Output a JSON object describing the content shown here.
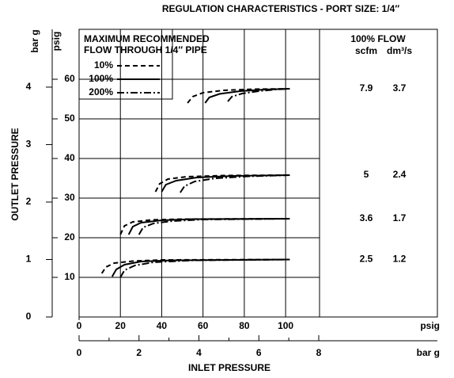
{
  "chart_data": {
    "type": "line",
    "title": "REGULATION CHARACTERISTICS - PORT SIZE: 1/4″",
    "legend_title": [
      "MAXIMUM RECOMMENDED",
      "FLOW THROUGH 1/4″ PIPE"
    ],
    "xlabel": "INLET PRESSURE",
    "ylabel": "OUTLET PRESSURE",
    "xunit": "psig",
    "x2unit": "bar g",
    "yunit": "psig",
    "y2unit": "bar g",
    "xlim": [
      0,
      173.5
    ],
    "xticks": [
      0,
      20,
      40,
      60,
      80,
      100
    ],
    "x2lim": [
      0,
      11.96
    ],
    "x2ticks": [
      0,
      2,
      4,
      6,
      8
    ],
    "x2minor": [
      1,
      3,
      5,
      7
    ],
    "ylim": [
      0,
      72.6
    ],
    "yticks": [
      10,
      20,
      30,
      40,
      50,
      60
    ],
    "y2lim": [
      0,
      5.006
    ],
    "y2ticks": [
      0,
      1,
      2,
      3,
      4
    ],
    "grid": true,
    "series": [
      {
        "name": "10%",
        "color": "#000000",
        "dash": "6,4",
        "x": [
          11,
          13,
          17,
          26,
          40,
          102,
          null,
          20,
          22,
          26,
          35,
          50,
          102,
          null,
          37,
          39,
          43,
          52,
          70,
          102,
          null,
          52.5,
          55,
          60,
          70,
          85,
          102
        ],
        "values": [
          11,
          12.6,
          13.6,
          14.1,
          14.4,
          14.5,
          null,
          20.8,
          23,
          24,
          24.5,
          24.7,
          24.8,
          null,
          31.6,
          33.6,
          34.8,
          35.4,
          35.7,
          35.8,
          null,
          54,
          55.6,
          56.6,
          57.2,
          57.5,
          57.6
        ]
      },
      {
        "name": "100%",
        "color": "#000000",
        "dash": "none",
        "x": [
          16,
          18,
          22,
          30,
          45,
          102,
          null,
          24,
          26,
          30,
          40,
          55,
          102,
          null,
          40,
          42,
          47,
          57,
          75,
          102,
          null,
          61,
          63,
          68,
          78,
          90,
          102
        ],
        "values": [
          10.2,
          12,
          13.2,
          14,
          14.3,
          14.5,
          null,
          20.8,
          22.8,
          23.8,
          24.4,
          24.7,
          24.8,
          null,
          31.6,
          33.4,
          34.4,
          35.2,
          35.6,
          35.8,
          null,
          54,
          55.4,
          56.3,
          57,
          57.4,
          57.6
        ]
      },
      {
        "name": "200%",
        "color": "#000000",
        "dash": "9,3,2,3",
        "x": [
          20,
          22,
          27,
          36,
          55,
          102,
          null,
          29,
          31,
          36,
          45,
          60,
          102,
          null,
          49,
          51,
          56,
          66,
          82,
          102,
          null,
          72,
          74,
          79,
          87,
          95,
          102
        ],
        "values": [
          10,
          11.8,
          13,
          13.8,
          14.3,
          14.5,
          null,
          20.8,
          22.6,
          23.6,
          24.2,
          24.6,
          24.8,
          null,
          31.4,
          33,
          34.2,
          35,
          35.5,
          35.8,
          null,
          54.4,
          55.6,
          56.4,
          57,
          57.4,
          57.6
        ]
      }
    ],
    "flow_table": {
      "title": "100% FLOW",
      "headers": [
        "scfm",
        "dm³/s"
      ],
      "rows": [
        [
          7.9,
          3.7
        ],
        [
          5,
          2.4
        ],
        [
          3.6,
          1.7
        ],
        [
          2.5,
          1.2
        ]
      ]
    }
  }
}
